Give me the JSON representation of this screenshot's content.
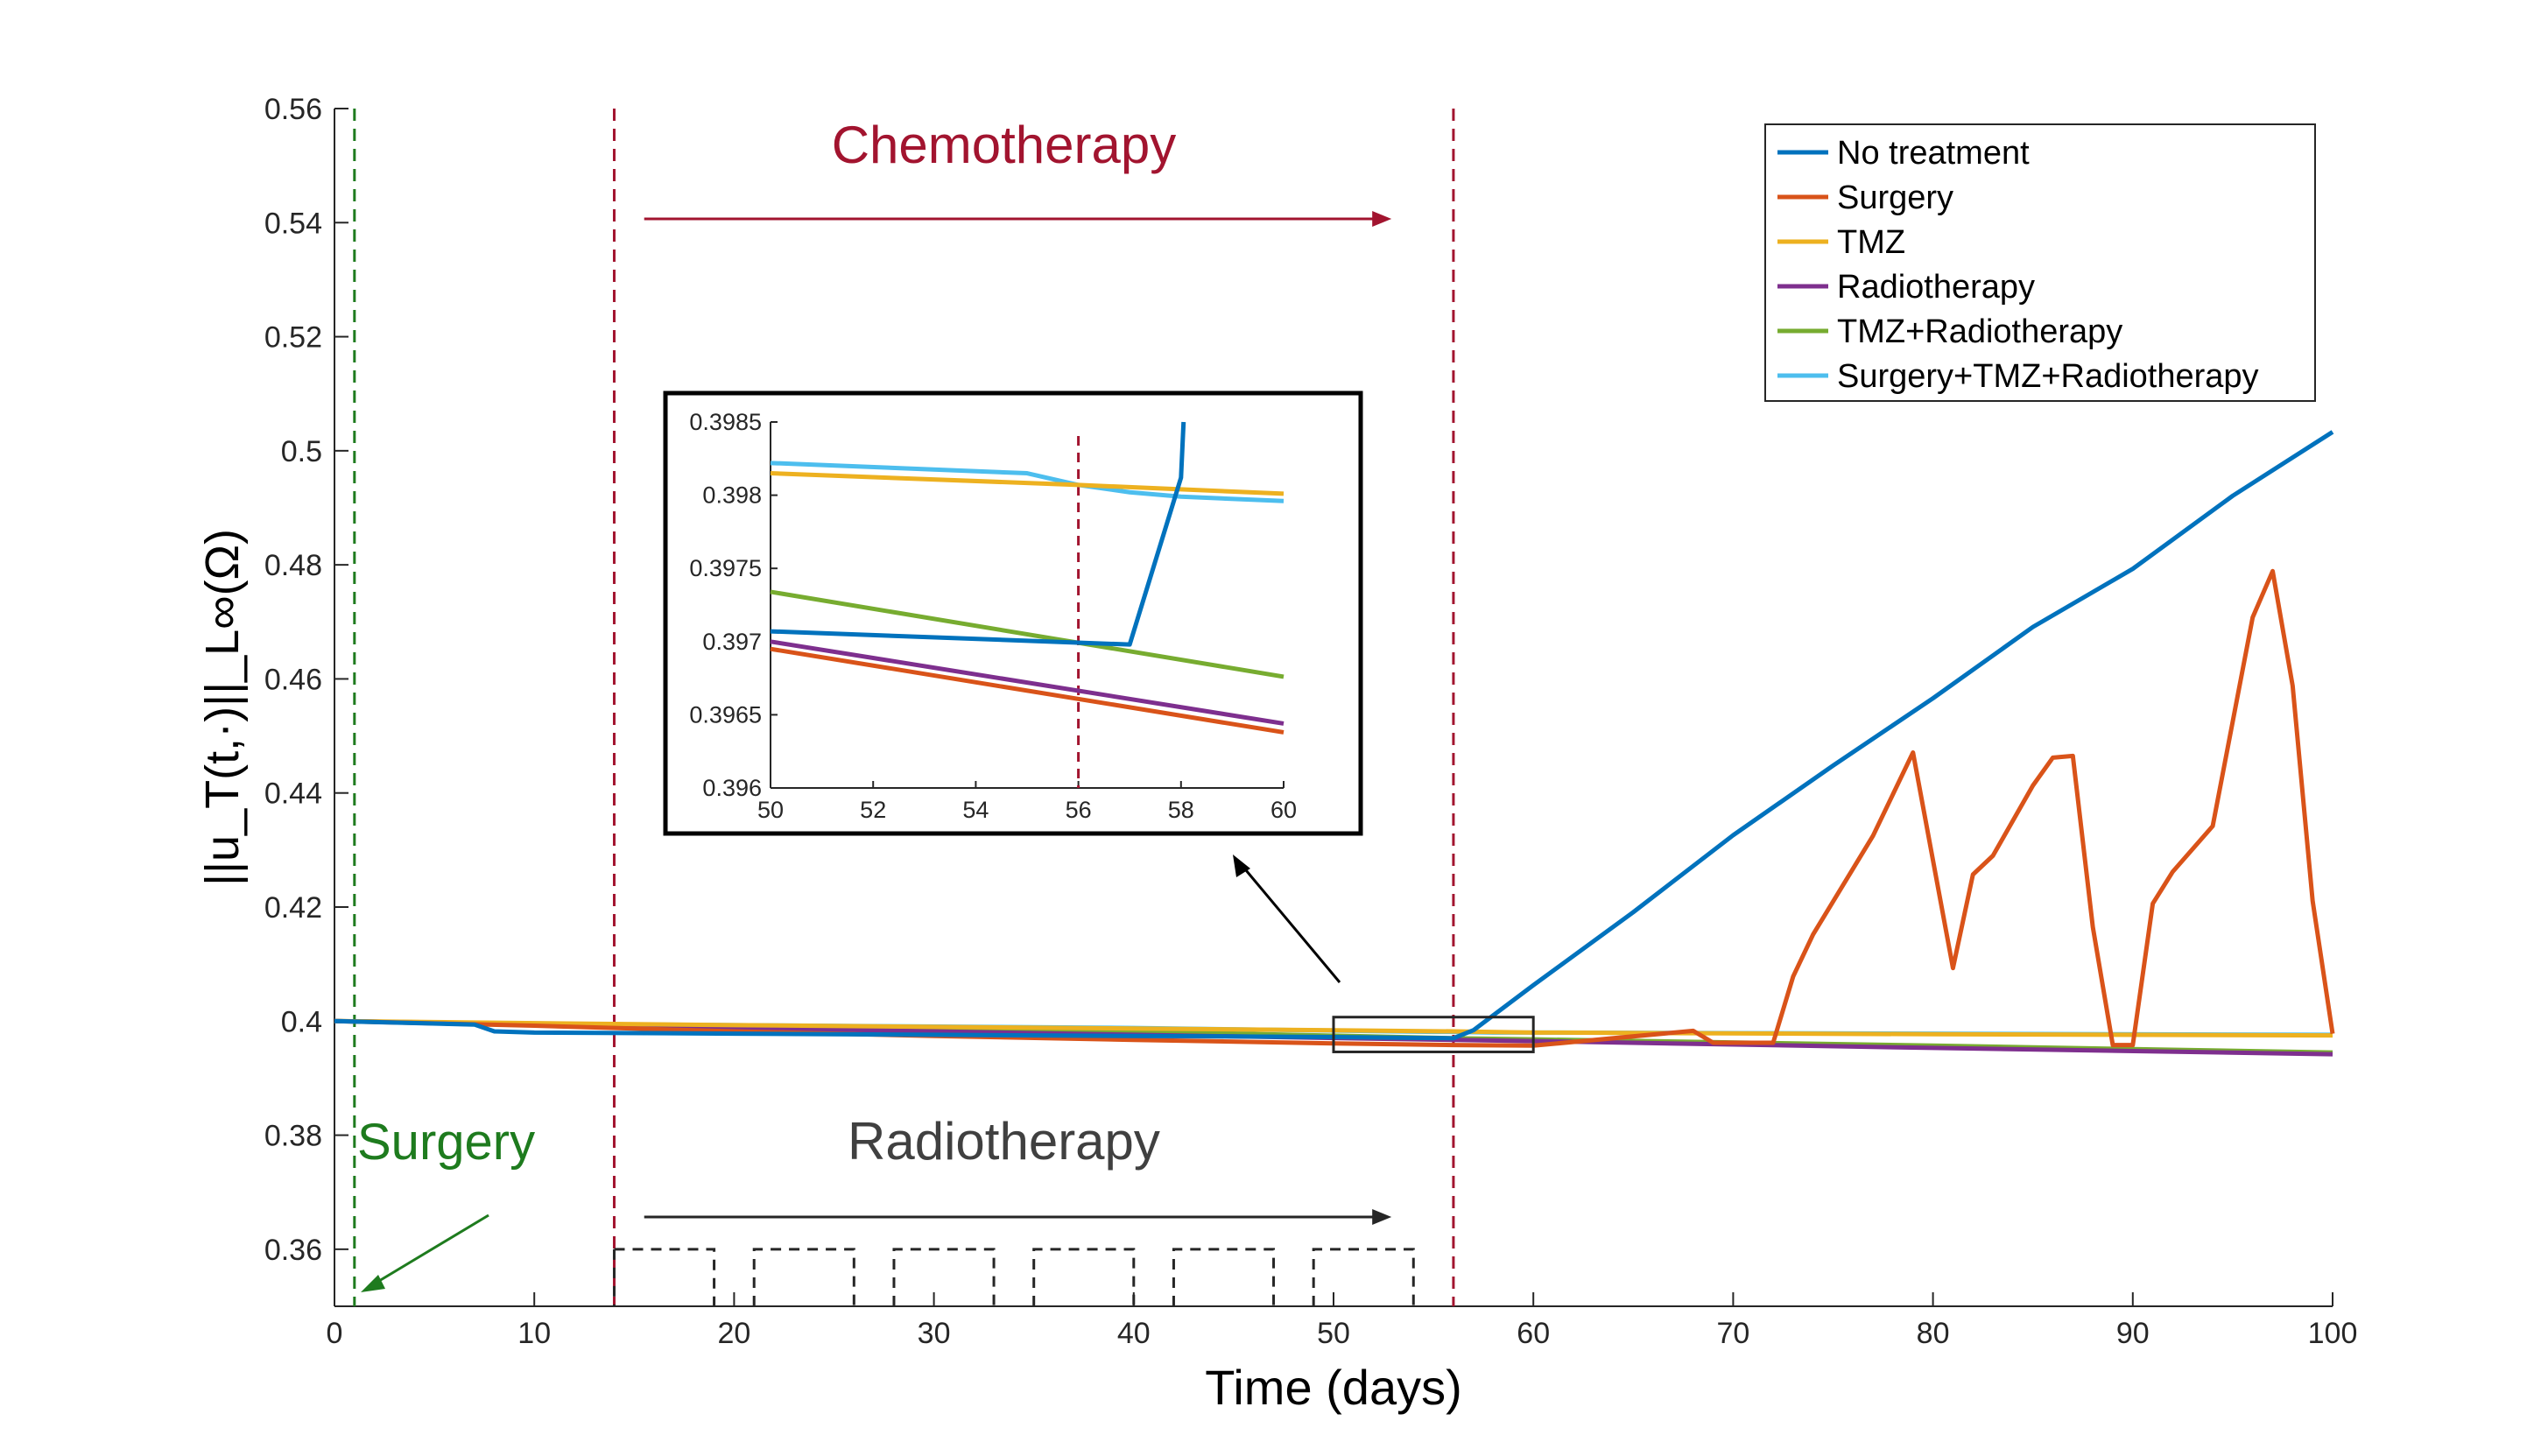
{
  "chart_data": {
    "type": "line",
    "xlabel": "Time (days)",
    "ylabel": "||u_T(t,·)||_L∞(Ω)",
    "xlim": [
      0,
      100
    ],
    "ylim": [
      0.35,
      0.56
    ],
    "xticks": [
      "0",
      "10",
      "20",
      "30",
      "40",
      "50",
      "60",
      "70",
      "80",
      "90",
      "100"
    ],
    "yticks": [
      "0.36",
      "0.38",
      "0.4",
      "0.42",
      "0.44",
      "0.46",
      "0.48",
      "0.5",
      "0.52",
      "0.54",
      "0.56"
    ],
    "grid": false,
    "legend_position": "top-right",
    "series": [
      {
        "name": "No treatment",
        "color": "#0072BD",
        "x": [
          0,
          7,
          8,
          10,
          20,
          30,
          40,
          50,
          56,
          57,
          60,
          65,
          70,
          75,
          80,
          85,
          90,
          95,
          100
        ],
        "y": [
          0.4,
          0.3994,
          0.3982,
          0.398,
          0.3978,
          0.3976,
          0.3974,
          0.3972,
          0.397,
          0.3984,
          0.4063,
          0.4191,
          0.4326,
          0.4448,
          0.4566,
          0.4691,
          0.4793,
          0.4921,
          0.5033
        ]
      },
      {
        "name": "Surgery",
        "color": "#D95319",
        "x": [
          0,
          10,
          20,
          30,
          40,
          50,
          56,
          60,
          68,
          69,
          72,
          73,
          74,
          77,
          79,
          81,
          82,
          83,
          85,
          86,
          87,
          88,
          89,
          90,
          91,
          92,
          94,
          96,
          97,
          98,
          99,
          100
        ],
        "y": [
          0.4,
          0.3992,
          0.3982,
          0.3974,
          0.3967,
          0.3961,
          0.3958,
          0.3957,
          0.3983,
          0.3962,
          0.3962,
          0.4078,
          0.4152,
          0.4325,
          0.4471,
          0.4093,
          0.4257,
          0.429,
          0.4413,
          0.4462,
          0.4465,
          0.4165,
          0.3958,
          0.3958,
          0.4206,
          0.4262,
          0.4342,
          0.4708,
          0.4789,
          0.4588,
          0.4211,
          0.3978
        ]
      },
      {
        "name": "TMZ",
        "color": "#EDB120",
        "x": [
          0,
          20,
          40,
          56,
          60,
          80,
          100
        ],
        "y": [
          0.4,
          0.3993,
          0.3987,
          0.3982,
          0.398,
          0.3977,
          0.3975
        ]
      },
      {
        "name": "Radiotherapy",
        "color": "#7E2F8E",
        "x": [
          0,
          20,
          40,
          56,
          60,
          80,
          100
        ],
        "y": [
          0.4,
          0.3988,
          0.3976,
          0.3967,
          0.3965,
          0.3953,
          0.3942
        ]
      },
      {
        "name": "TMZ+Radiotherapy",
        "color": "#77AC30",
        "x": [
          0,
          20,
          40,
          56,
          60,
          80,
          100
        ],
        "y": [
          0.4,
          0.3991,
          0.3982,
          0.397,
          0.3968,
          0.3957,
          0.3945
        ]
      },
      {
        "name": "Surgery+TMZ+Radiotherapy",
        "color": "#4DBEEE",
        "x": [
          0,
          10,
          20,
          40,
          55,
          56,
          58,
          60,
          80,
          100
        ],
        "y": [
          0.4,
          0.3995,
          0.3993,
          0.3988,
          0.3981,
          0.3981,
          0.398,
          0.398,
          0.3978,
          0.3976
        ]
      }
    ],
    "annotations": {
      "chemotherapy": {
        "text": "Chemotherapy",
        "color": "#A2142F",
        "x_start": 14,
        "x_end": 56
      },
      "radiotherapy": {
        "text": "Radiotherapy",
        "color": "#404040",
        "x_start": 14,
        "x_end": 56
      },
      "surgery": {
        "text": "Surgery",
        "color": "#1E7B1E",
        "x": 1
      }
    },
    "radiotherapy_schedule": [
      [
        14,
        19
      ],
      [
        21,
        26
      ],
      [
        28,
        33
      ],
      [
        35,
        40
      ],
      [
        42,
        47
      ],
      [
        49,
        54
      ]
    ],
    "inset": {
      "xlim": [
        50,
        60
      ],
      "ylim": [
        0.396,
        0.3985
      ],
      "xticks": [
        "50",
        "52",
        "54",
        "56",
        "58",
        "60"
      ],
      "yticks": [
        "0.396",
        "0.3965",
        "0.397",
        "0.3975",
        "0.398",
        "0.3985"
      ],
      "marker_x": 56,
      "series": [
        {
          "name": "No treatment",
          "color": "#0072BD",
          "x": [
            50,
            57,
            58,
            58.05
          ],
          "y": [
            0.39707,
            0.39698,
            0.39812,
            0.3985
          ]
        },
        {
          "name": "Surgery",
          "color": "#D95319",
          "x": [
            50,
            60
          ],
          "y": [
            0.39695,
            0.39638
          ]
        },
        {
          "name": "TMZ",
          "color": "#EDB120",
          "x": [
            50,
            56,
            60
          ],
          "y": [
            0.39815,
            0.39807,
            0.39801
          ]
        },
        {
          "name": "Radiotherapy",
          "color": "#7E2F8E",
          "x": [
            50,
            60
          ],
          "y": [
            0.397,
            0.39644
          ]
        },
        {
          "name": "TMZ+Radiotherapy",
          "color": "#77AC30",
          "x": [
            50,
            60
          ],
          "y": [
            0.39734,
            0.39676
          ]
        },
        {
          "name": "Surgery+TMZ+Radiotherapy",
          "color": "#4DBEEE",
          "x": [
            50,
            55,
            56,
            57,
            58,
            60
          ],
          "y": [
            0.39822,
            0.39815,
            0.39807,
            0.39802,
            0.39799,
            0.39796
          ]
        }
      ]
    }
  }
}
